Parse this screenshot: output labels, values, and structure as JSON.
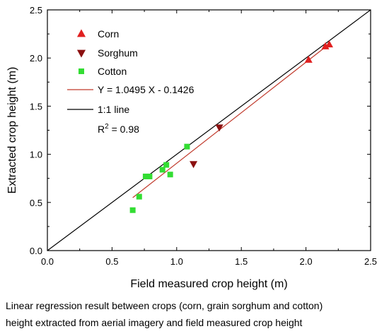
{
  "chart_data": {
    "type": "scatter",
    "xlabel": "Field measured crop height (m)",
    "ylabel": "Extracted crop height (m)",
    "xlim": [
      0,
      2.5
    ],
    "ylim": [
      0,
      2.5
    ],
    "x_ticks": [
      "0.0",
      "0.5",
      "1.0",
      "1.5",
      "2.0",
      "2.5"
    ],
    "y_ticks": [
      "0.0",
      "0.5",
      "1.0",
      "1.5",
      "2.0",
      "2.5"
    ],
    "grid": false,
    "legend_position": "top-left",
    "series": [
      {
        "name": "Corn",
        "marker": "triangle-up",
        "color": "#e02020",
        "points": [
          [
            2.02,
            1.98
          ],
          [
            2.15,
            2.12
          ],
          [
            2.18,
            2.14
          ]
        ]
      },
      {
        "name": "Sorghum",
        "marker": "triangle-down",
        "color": "#8b1010",
        "points": [
          [
            1.13,
            0.9
          ],
          [
            1.33,
            1.28
          ]
        ]
      },
      {
        "name": "Cotton",
        "marker": "square",
        "color": "#33dd33",
        "points": [
          [
            0.66,
            0.42
          ],
          [
            0.71,
            0.56
          ],
          [
            0.76,
            0.77
          ],
          [
            0.79,
            0.77
          ],
          [
            0.89,
            0.84
          ],
          [
            0.92,
            0.89
          ],
          [
            0.95,
            0.79
          ],
          [
            1.08,
            1.08
          ]
        ]
      }
    ],
    "regression": {
      "label": "Y = 1.0495 X - 0.1426",
      "slope": 1.0495,
      "intercept": -0.1426,
      "x_range": [
        0.66,
        2.18
      ],
      "color": "#c0392b"
    },
    "one_to_one": {
      "label": "1:1 line",
      "color": "#000000"
    },
    "r_squared_prefix": "R",
    "r_squared_exp": "2",
    "r_squared_value": " = 0.98"
  },
  "caption": {
    "line1": "Linear regression result between crops (corn, grain sorghum and cotton)",
    "line2": "height extracted from aerial imagery and field measured crop height"
  }
}
